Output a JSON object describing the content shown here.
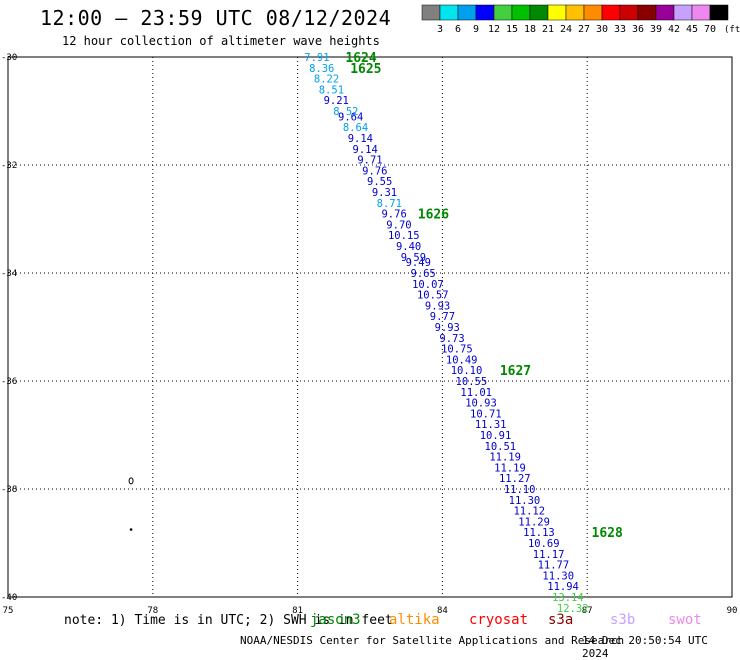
{
  "header": {
    "title": "12:00 – 23:59 UTC 08/12/2024",
    "subtitle": "12 hour collection of altimeter wave heights"
  },
  "colorbar": {
    "labels": [
      "3",
      "6",
      "9",
      "12",
      "15",
      "18",
      "21",
      "24",
      "27",
      "30",
      "33",
      "36",
      "39",
      "42",
      "45",
      "70"
    ],
    "unit": "(ft)",
    "colors": [
      "#808080",
      "#00e5ee",
      "#00a0ee",
      "#0000ff",
      "#40d040",
      "#00c000",
      "#008800",
      "#ffff00",
      "#ffc000",
      "#ff8c00",
      "#ff0000",
      "#cc0000",
      "#880000",
      "#990099",
      "#c8a0ff",
      "#ee88ee",
      "#000000"
    ]
  },
  "axes": {
    "x_ticks": [
      "75",
      "78",
      "81",
      "84",
      "87",
      "90"
    ],
    "y_ticks": [
      "-30",
      "-32",
      "-34",
      "-36",
      "-38",
      "-40"
    ],
    "x_range": [
      75,
      90
    ],
    "y_range": [
      -30,
      -40
    ]
  },
  "chart_data": {
    "type": "scatter",
    "points": [
      {
        "lon": 81.4,
        "lat": -30.0,
        "label": "7.91",
        "color": "#00a0ee"
      },
      {
        "lon": 81.5,
        "lat": -30.2,
        "label": "8.36",
        "color": "#00a0ee"
      },
      {
        "lon": 81.6,
        "lat": -30.4,
        "label": "8.22",
        "color": "#00a0ee"
      },
      {
        "lon": 81.7,
        "lat": -30.6,
        "label": "8.51",
        "color": "#00a0ee"
      },
      {
        "lon": 81.8,
        "lat": -30.8,
        "label": "9.21",
        "color": "#0000cc"
      },
      {
        "lon": 82.0,
        "lat": -31.0,
        "label": "8.52",
        "color": "#00a0ee"
      },
      {
        "lon": 82.1,
        "lat": -31.1,
        "label": "9.64",
        "color": "#0000cc"
      },
      {
        "lon": 82.2,
        "lat": -31.3,
        "label": "8.64",
        "color": "#00a0ee"
      },
      {
        "lon": 82.3,
        "lat": -31.5,
        "label": "9.14",
        "color": "#0000cc"
      },
      {
        "lon": 82.4,
        "lat": -31.7,
        "label": "9.14",
        "color": "#0000cc"
      },
      {
        "lon": 82.5,
        "lat": -31.9,
        "label": "9.71",
        "color": "#0000cc"
      },
      {
        "lon": 82.6,
        "lat": -32.1,
        "label": "9.76",
        "color": "#0000cc"
      },
      {
        "lon": 82.7,
        "lat": -32.3,
        "label": "9.55",
        "color": "#0000cc"
      },
      {
        "lon": 82.8,
        "lat": -32.5,
        "label": "9.31",
        "color": "#0000cc"
      },
      {
        "lon": 82.9,
        "lat": -32.7,
        "label": "8.71",
        "color": "#00a0ee"
      },
      {
        "lon": 83.0,
        "lat": -32.9,
        "label": "9.76",
        "color": "#0000cc"
      },
      {
        "lon": 83.1,
        "lat": -33.1,
        "label": "9.70",
        "color": "#0000cc"
      },
      {
        "lon": 83.2,
        "lat": -33.3,
        "label": "10.15",
        "color": "#0000cc"
      },
      {
        "lon": 83.3,
        "lat": -33.5,
        "label": "9.40",
        "color": "#0000cc"
      },
      {
        "lon": 83.4,
        "lat": -33.7,
        "label": "9.59",
        "color": "#0000cc"
      },
      {
        "lon": 83.5,
        "lat": -33.8,
        "label": "9.49",
        "color": "#0000cc"
      },
      {
        "lon": 83.6,
        "lat": -34.0,
        "label": "9.65",
        "color": "#0000cc"
      },
      {
        "lon": 83.7,
        "lat": -34.2,
        "label": "10.07",
        "color": "#0000cc"
      },
      {
        "lon": 83.8,
        "lat": -34.4,
        "label": "10.57",
        "color": "#0000cc"
      },
      {
        "lon": 83.9,
        "lat": -34.6,
        "label": "9.93",
        "color": "#0000cc"
      },
      {
        "lon": 84.0,
        "lat": -34.8,
        "label": "9.77",
        "color": "#0000cc"
      },
      {
        "lon": 84.1,
        "lat": -35.0,
        "label": "9.93",
        "color": "#0000cc"
      },
      {
        "lon": 84.2,
        "lat": -35.2,
        "label": "9.73",
        "color": "#0000cc"
      },
      {
        "lon": 84.3,
        "lat": -35.4,
        "label": "10.75",
        "color": "#0000cc"
      },
      {
        "lon": 84.4,
        "lat": -35.6,
        "label": "10.49",
        "color": "#0000cc"
      },
      {
        "lon": 84.5,
        "lat": -35.8,
        "label": "10.10",
        "color": "#0000cc"
      },
      {
        "lon": 84.6,
        "lat": -36.0,
        "label": "10.55",
        "color": "#0000cc"
      },
      {
        "lon": 84.7,
        "lat": -36.2,
        "label": "11.01",
        "color": "#0000cc"
      },
      {
        "lon": 84.8,
        "lat": -36.4,
        "label": "10.93",
        "color": "#0000cc"
      },
      {
        "lon": 84.9,
        "lat": -36.6,
        "label": "10.71",
        "color": "#0000cc"
      },
      {
        "lon": 85.0,
        "lat": -36.8,
        "label": "11.31",
        "color": "#0000cc"
      },
      {
        "lon": 85.1,
        "lat": -37.0,
        "label": "10.91",
        "color": "#0000cc"
      },
      {
        "lon": 85.2,
        "lat": -37.2,
        "label": "10.51",
        "color": "#0000cc"
      },
      {
        "lon": 85.3,
        "lat": -37.4,
        "label": "11.19",
        "color": "#0000cc"
      },
      {
        "lon": 85.4,
        "lat": -37.6,
        "label": "11.19",
        "color": "#0000cc"
      },
      {
        "lon": 85.5,
        "lat": -37.8,
        "label": "11.27",
        "color": "#0000cc"
      },
      {
        "lon": 85.6,
        "lat": -38.0,
        "label": "11.10",
        "color": "#0000cc"
      },
      {
        "lon": 85.7,
        "lat": -38.2,
        "label": "11.30",
        "color": "#0000cc"
      },
      {
        "lon": 85.8,
        "lat": -38.4,
        "label": "11.12",
        "color": "#0000cc"
      },
      {
        "lon": 85.9,
        "lat": -38.6,
        "label": "11.29",
        "color": "#0000cc"
      },
      {
        "lon": 86.0,
        "lat": -38.8,
        "label": "11.13",
        "color": "#0000cc"
      },
      {
        "lon": 86.1,
        "lat": -39.0,
        "label": "10.69",
        "color": "#0000cc"
      },
      {
        "lon": 86.2,
        "lat": -39.2,
        "label": "11.17",
        "color": "#0000cc"
      },
      {
        "lon": 86.3,
        "lat": -39.4,
        "label": "11.77",
        "color": "#0000cc"
      },
      {
        "lon": 86.4,
        "lat": -39.6,
        "label": "11.30",
        "color": "#0000cc"
      },
      {
        "lon": 86.5,
        "lat": -39.8,
        "label": "11.94",
        "color": "#0000cc"
      },
      {
        "lon": 86.6,
        "lat": -40.0,
        "label": "13.14",
        "color": "#40d040"
      },
      {
        "lon": 86.7,
        "lat": -40.2,
        "label": "12.32",
        "color": "#40d040"
      }
    ],
    "time_labels": [
      {
        "lon": 81.7,
        "lat": -30.0,
        "label": "1624"
      },
      {
        "lon": 81.8,
        "lat": -30.2,
        "label": "1625"
      },
      {
        "lon": 83.2,
        "lat": -32.9,
        "label": "1626"
      },
      {
        "lon": 84.9,
        "lat": -35.8,
        "label": "1627"
      },
      {
        "lon": 86.8,
        "lat": -38.8,
        "label": "1628"
      }
    ],
    "islands": [
      {
        "lon": 77.55,
        "lat": -37.85,
        "shape": "ring"
      },
      {
        "lon": 77.55,
        "lat": -38.75,
        "shape": "dot"
      }
    ]
  },
  "footer": {
    "note": "note: 1) Time is in UTC; 2) SWH is in feet",
    "credit": "NOAA/NESDIS Center for Satellite Applications and Research",
    "generated": "14 Dec 20:50:54 UTC 2024",
    "missions": [
      {
        "name": "jason3",
        "color": "#008800"
      },
      {
        "name": "altika",
        "color": "#ff8c00"
      },
      {
        "name": "cryosat",
        "color": "#ff0000"
      },
      {
        "name": "s3a",
        "color": "#880000"
      },
      {
        "name": "s3b",
        "color": "#c8a0ff"
      },
      {
        "name": "swot",
        "color": "#ee88ee"
      }
    ]
  }
}
